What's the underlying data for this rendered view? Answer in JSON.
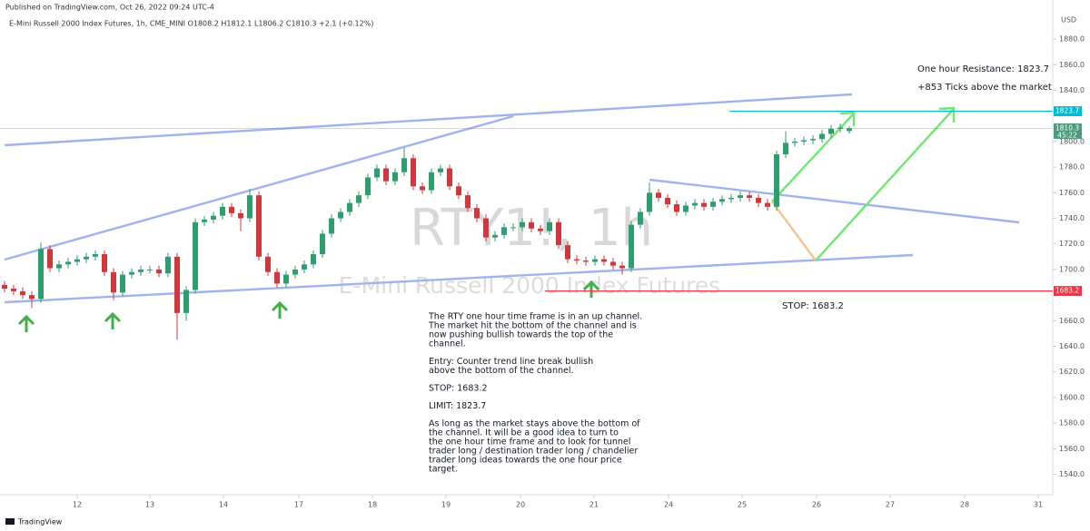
{
  "header": {
    "published": "Published on TradingView.com, Oct 26, 2022 09:24 UTC-4",
    "symbol_line": "E-Mini Russell 2000 Index Futures, 1h, CME_MINI  O1808.2  H1812.1  L1806.2  C1810.3  +2.1 (+0.12%)",
    "footer": "TradingView"
  },
  "chart_data": {
    "type": "candlestick",
    "watermark": "RTY1!, 1h",
    "watermark_subtitle": "E-Mini Russell 2000 Index Futures",
    "currency": "USD",
    "up_color": "#2e9e6e",
    "down_color": "#d0383d",
    "x": [
      0,
      1,
      2,
      3,
      4,
      5,
      6,
      7,
      8,
      9,
      10,
      11,
      12,
      13,
      14,
      15,
      16,
      17,
      18,
      19,
      20,
      21,
      22,
      23,
      24,
      25,
      26,
      27,
      28,
      29,
      30,
      31,
      32,
      33,
      34,
      35,
      36,
      37,
      38,
      39,
      40,
      41,
      42,
      43,
      44,
      45,
      46,
      47,
      48,
      49,
      50,
      51,
      52,
      53,
      54,
      55,
      56,
      57,
      58,
      59,
      60,
      61,
      62,
      63,
      64,
      65,
      66,
      67,
      68,
      69,
      70,
      71,
      72,
      73,
      74,
      75,
      76,
      77,
      78,
      79,
      80,
      81,
      82,
      83,
      84,
      85,
      86,
      87,
      88,
      89,
      90,
      91,
      92,
      93
    ],
    "open": [
      1688,
      1685,
      1683,
      1680,
      1677,
      1716,
      1701,
      1704,
      1706,
      1708,
      1710,
      1712,
      1698,
      1682,
      1696,
      1698,
      1700,
      1700,
      1697,
      1710,
      1666,
      1684,
      1737,
      1739,
      1742,
      1749,
      1744,
      1740,
      1758,
      1710,
      1698,
      1689,
      1696,
      1700,
      1704,
      1712,
      1728,
      1740,
      1745,
      1752,
      1758,
      1772,
      1779,
      1769,
      1776,
      1787,
      1765,
      1762,
      1776,
      1779,
      1765,
      1758,
      1748,
      1740,
      1725,
      1727,
      1733,
      1733,
      1737,
      1732,
      1730,
      1737,
      1719,
      1708,
      1707,
      1706,
      1708,
      1706,
      1703,
      1701,
      1735,
      1745,
      1760,
      1756,
      1751,
      1745,
      1750,
      1752,
      1749,
      1753,
      1755,
      1756,
      1758,
      1756,
      1752,
      1749,
      1790,
      1799,
      1800,
      1801,
      1802,
      1806,
      1810,
      1808.2
    ],
    "high": [
      1691,
      1688,
      1686,
      1683,
      1721,
      1719,
      1707,
      1709,
      1711,
      1713,
      1715,
      1715,
      1701,
      1699,
      1701,
      1703,
      1703,
      1703,
      1713,
      1713,
      1687,
      1740,
      1742,
      1745,
      1752,
      1752,
      1747,
      1763,
      1761,
      1713,
      1701,
      1699,
      1703,
      1707,
      1715,
      1731,
      1743,
      1748,
      1755,
      1761,
      1775,
      1782,
      1782,
      1779,
      1795,
      1790,
      1768,
      1779,
      1782,
      1782,
      1768,
      1761,
      1751,
      1743,
      1730,
      1736,
      1736,
      1740,
      1740,
      1735,
      1740,
      1740,
      1722,
      1711,
      1710,
      1711,
      1711,
      1709,
      1706,
      1738,
      1748,
      1768,
      1763,
      1759,
      1754,
      1753,
      1755,
      1755,
      1756,
      1758,
      1759,
      1761,
      1761,
      1759,
      1755,
      1793,
      1808,
      1803,
      1804,
      1805,
      1809,
      1813,
      1814,
      1812.1
    ],
    "low": [
      1682,
      1680,
      1677,
      1670,
      1674,
      1698,
      1698,
      1701,
      1703,
      1705,
      1707,
      1695,
      1676,
      1679,
      1693,
      1695,
      1697,
      1694,
      1694,
      1645,
      1660,
      1681,
      1734,
      1736,
      1739,
      1741,
      1730,
      1737,
      1707,
      1695,
      1686,
      1686,
      1693,
      1697,
      1701,
      1709,
      1725,
      1737,
      1742,
      1749,
      1755,
      1769,
      1766,
      1766,
      1773,
      1762,
      1759,
      1759,
      1773,
      1762,
      1755,
      1745,
      1737,
      1722,
      1722,
      1724,
      1730,
      1730,
      1729,
      1727,
      1727,
      1716,
      1705,
      1704,
      1703,
      1703,
      1703,
      1700,
      1696,
      1698,
      1732,
      1742,
      1753,
      1748,
      1742,
      1742,
      1747,
      1746,
      1746,
      1750,
      1752,
      1753,
      1753,
      1749,
      1746,
      1746,
      1787,
      1796,
      1797,
      1798,
      1799,
      1803,
      1807,
      1806.2
    ],
    "close": [
      1685,
      1683,
      1680,
      1677,
      1716,
      1701,
      1704,
      1706,
      1708,
      1710,
      1712,
      1698,
      1682,
      1696,
      1698,
      1700,
      1700,
      1697,
      1710,
      1666,
      1684,
      1737,
      1739,
      1742,
      1749,
      1744,
      1740,
      1758,
      1710,
      1698,
      1689,
      1696,
      1700,
      1704,
      1712,
      1728,
      1740,
      1745,
      1752,
      1758,
      1772,
      1779,
      1769,
      1776,
      1787,
      1765,
      1762,
      1776,
      1779,
      1765,
      1758,
      1748,
      1740,
      1725,
      1727,
      1733,
      1733,
      1737,
      1732,
      1730,
      1737,
      1719,
      1708,
      1707,
      1706,
      1708,
      1706,
      1703,
      1701,
      1735,
      1745,
      1760,
      1756,
      1751,
      1745,
      1750,
      1752,
      1749,
      1753,
      1755,
      1756,
      1758,
      1756,
      1752,
      1749,
      1790,
      1799,
      1800,
      1801,
      1802,
      1806,
      1810,
      1811,
      1810.3
    ],
    "xlim": [
      -0.5,
      115.3
    ],
    "xticks": [
      {
        "value": 8,
        "label": "12"
      },
      {
        "value": 16,
        "label": "13"
      },
      {
        "value": 24.1,
        "label": "14"
      },
      {
        "value": 32.4,
        "label": "17"
      },
      {
        "value": 40.5,
        "label": "18"
      },
      {
        "value": 48.6,
        "label": "19"
      },
      {
        "value": 56.8,
        "label": "20"
      },
      {
        "value": 64.9,
        "label": "21"
      },
      {
        "value": 73.1,
        "label": "24"
      },
      {
        "value": 81.2,
        "label": "25"
      },
      {
        "value": 89.4,
        "label": "26"
      },
      {
        "value": 97.5,
        "label": "27"
      },
      {
        "value": 105.7,
        "label": "28"
      },
      {
        "value": 113.8,
        "label": "31"
      }
    ],
    "ylim": [
      1524,
      1900.7
    ],
    "yticks": [
      {
        "value": 1540,
        "label": "1540.0"
      },
      {
        "value": 1560,
        "label": "1560.0"
      },
      {
        "value": 1580,
        "label": "1580.0"
      },
      {
        "value": 1600,
        "label": "1600.0"
      },
      {
        "value": 1620,
        "label": "1620.0"
      },
      {
        "value": 1640,
        "label": "1640.0"
      },
      {
        "value": 1660,
        "label": "1660.0"
      },
      {
        "value": 1700,
        "label": "1700.0"
      },
      {
        "value": 1720,
        "label": "1720.0"
      },
      {
        "value": 1740,
        "label": "1740.0"
      },
      {
        "value": 1760,
        "label": "1760.0"
      },
      {
        "value": 1780,
        "label": "1780.0"
      },
      {
        "value": 1800,
        "label": "1800.0"
      },
      {
        "value": 1840,
        "label": "1840.0"
      },
      {
        "value": 1860,
        "label": "1860.0"
      },
      {
        "value": 1880,
        "label": "1880.0"
      }
    ],
    "grid": false,
    "levels": [
      {
        "value": 1823.7,
        "color": "#00bcd4"
      },
      {
        "value": 1810.3,
        "color": "#4e9a7c"
      },
      {
        "value": 1683.2,
        "color": "#f23645"
      }
    ],
    "countdown": "45:22",
    "annotations": {
      "resistance": "One hour Resistance: 1823.7",
      "ticks": "+853 Ticks above the market",
      "stop": "STOP: 1683.2",
      "paragraphs": [
        [
          "The RTY one hour time frame is in an up channel.",
          "The market hit the bottom of the channel and is",
          "now pushing bullish towards the top of the",
          "channel."
        ],
        [
          "Entry: Counter trend line break bullish",
          "above the bottom of the channel."
        ],
        [
          "STOP: 1683.2"
        ],
        [
          "LIMIT: 1823.7"
        ],
        [
          "As long as the market stays above the bottom of",
          "the channel. It will be a good idea to turn to",
          "the one hour time frame and to look for tunnel",
          "trader long / destination trader long / chandelier",
          "trader long ideas towards the one hour price",
          "target."
        ]
      ]
    }
  }
}
